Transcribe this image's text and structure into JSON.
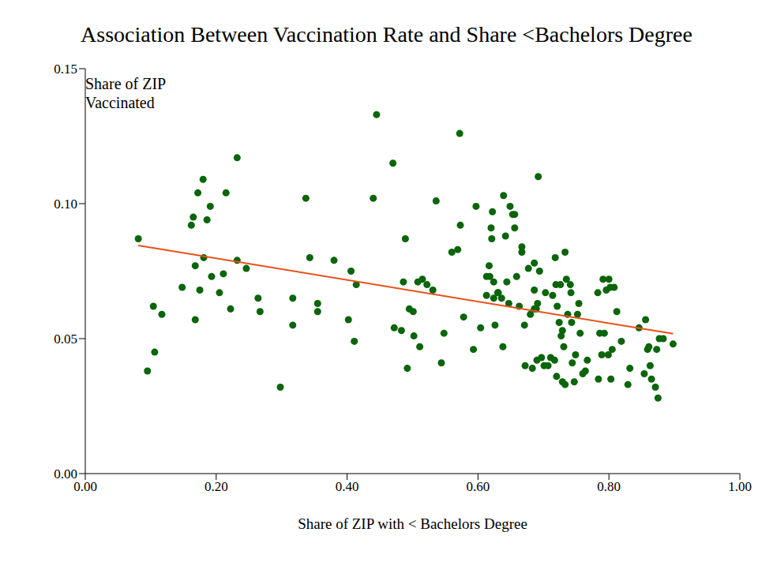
{
  "chart_data": {
    "type": "scatter",
    "title": "Association Between Vaccination Rate and Share <Bachelors Degree",
    "xlabel": "Share of ZIP with < Bachelors Degree",
    "ylabel": "Share of ZIP\nVaccinated",
    "xlim": [
      0,
      1
    ],
    "ylim": [
      0,
      0.15
    ],
    "xticks": [
      {
        "value": 0,
        "label": "0.00"
      },
      {
        "value": 0.2,
        "label": "0.20"
      },
      {
        "value": 0.4,
        "label": "0.40"
      },
      {
        "value": 0.6,
        "label": "0.60"
      },
      {
        "value": 0.8,
        "label": "0.80"
      },
      {
        "value": 1,
        "label": "1.00"
      }
    ],
    "yticks": [
      {
        "value": 0,
        "label": "0.00"
      },
      {
        "value": 0.05,
        "label": "0.05"
      },
      {
        "value": 0.1,
        "label": "0.10"
      },
      {
        "value": 0.15,
        "label": "0.15"
      }
    ],
    "grid": false,
    "series": [
      {
        "type": "scatter",
        "marker": "circle",
        "color": "#0b650b",
        "x": [
          0.081,
          0.095,
          0.104,
          0.106,
          0.117,
          0.148,
          0.162,
          0.165,
          0.168,
          0.168,
          0.172,
          0.175,
          0.18,
          0.181,
          0.186,
          0.191,
          0.193,
          0.205,
          0.211,
          0.215,
          0.222,
          0.232,
          0.232,
          0.246,
          0.264,
          0.267,
          0.298,
          0.317,
          0.317,
          0.337,
          0.343,
          0.355,
          0.355,
          0.38,
          0.402,
          0.406,
          0.411,
          0.414,
          0.44,
          0.445,
          0.47,
          0.472,
          0.483,
          0.486,
          0.489,
          0.492,
          0.495,
          0.501,
          0.502,
          0.508,
          0.511,
          0.515,
          0.522,
          0.531,
          0.536,
          0.544,
          0.548,
          0.56,
          0.569,
          0.572,
          0.573,
          0.578,
          0.593,
          0.597,
          0.604,
          0.613,
          0.613,
          0.617,
          0.618,
          0.62,
          0.621,
          0.622,
          0.624,
          0.624,
          0.626,
          0.63,
          0.631,
          0.636,
          0.638,
          0.639,
          0.642,
          0.644,
          0.647,
          0.649,
          0.653,
          0.656,
          0.656,
          0.659,
          0.663,
          0.667,
          0.667,
          0.671,
          0.672,
          0.677,
          0.68,
          0.683,
          0.686,
          0.686,
          0.686,
          0.689,
          0.69,
          0.691,
          0.692,
          0.694,
          0.697,
          0.701,
          0.703,
          0.707,
          0.711,
          0.714,
          0.717,
          0.718,
          0.719,
          0.72,
          0.721,
          0.724,
          0.726,
          0.727,
          0.729,
          0.729,
          0.731,
          0.733,
          0.733,
          0.735,
          0.737,
          0.741,
          0.742,
          0.743,
          0.744,
          0.747,
          0.749,
          0.752,
          0.754,
          0.756,
          0.76,
          0.764,
          0.767,
          0.783,
          0.784,
          0.786,
          0.789,
          0.791,
          0.793,
          0.796,
          0.799,
          0.8,
          0.802,
          0.803,
          0.805,
          0.808,
          0.812,
          0.819,
          0.829,
          0.832,
          0.846,
          0.854,
          0.856,
          0.859,
          0.861,
          0.863,
          0.865,
          0.871,
          0.873,
          0.875,
          0.877,
          0.883,
          0.898
        ],
        "values": [
          0.087,
          0.038,
          0.062,
          0.045,
          0.059,
          0.069,
          0.092,
          0.095,
          0.077,
          0.057,
          0.104,
          0.068,
          0.109,
          0.08,
          0.094,
          0.099,
          0.073,
          0.067,
          0.074,
          0.104,
          0.061,
          0.117,
          0.079,
          0.076,
          0.065,
          0.06,
          0.032,
          0.065,
          0.055,
          0.102,
          0.08,
          0.063,
          0.06,
          0.079,
          0.057,
          0.075,
          0.049,
          0.07,
          0.102,
          0.133,
          0.115,
          0.054,
          0.053,
          0.071,
          0.087,
          0.039,
          0.061,
          0.06,
          0.051,
          0.071,
          0.047,
          0.072,
          0.07,
          0.068,
          0.101,
          0.041,
          0.052,
          0.082,
          0.083,
          0.126,
          0.092,
          0.058,
          0.046,
          0.099,
          0.054,
          0.073,
          0.066,
          0.077,
          0.073,
          0.091,
          0.087,
          0.097,
          0.071,
          0.065,
          0.055,
          0.067,
          0.067,
          0.065,
          0.047,
          0.103,
          0.088,
          0.071,
          0.063,
          0.099,
          0.096,
          0.091,
          0.096,
          0.073,
          0.062,
          0.082,
          0.084,
          0.055,
          0.04,
          0.076,
          0.059,
          0.039,
          0.078,
          0.061,
          0.068,
          0.061,
          0.042,
          0.063,
          0.11,
          0.075,
          0.043,
          0.04,
          0.067,
          0.04,
          0.043,
          0.066,
          0.042,
          0.08,
          0.07,
          0.036,
          0.062,
          0.056,
          0.07,
          0.051,
          0.053,
          0.034,
          0.047,
          0.033,
          0.082,
          0.072,
          0.059,
          0.07,
          0.067,
          0.056,
          0.041,
          0.034,
          0.044,
          0.059,
          0.063,
          0.052,
          0.037,
          0.038,
          0.042,
          0.067,
          0.035,
          0.052,
          0.044,
          0.072,
          0.052,
          0.068,
          0.044,
          0.072,
          0.069,
          0.035,
          0.046,
          0.069,
          0.06,
          0.049,
          0.033,
          0.039,
          0.054,
          0.037,
          0.057,
          0.046,
          0.047,
          0.04,
          0.035,
          0.032,
          0.046,
          0.028,
          0.05,
          0.05,
          0.048
        ]
      },
      {
        "type": "line",
        "line_style": "solid",
        "color": "#e8501a",
        "x": [
          0.081,
          0.898
        ],
        "values": [
          0.0845,
          0.0518
        ]
      }
    ]
  }
}
